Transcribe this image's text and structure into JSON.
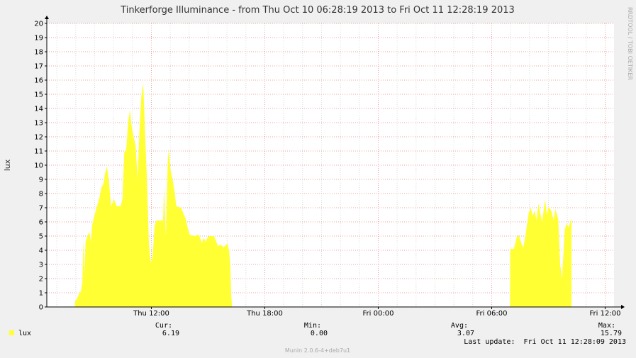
{
  "chart_data": {
    "type": "area",
    "title": "Tinkerforge Illuminance - from Thu Oct 10 06:28:19 2013 to Fri Oct 11 12:28:19 2013",
    "ylabel": "lux",
    "xlabel": "",
    "ylim": [
      0,
      20
    ],
    "yticks": [
      0,
      1,
      2,
      3,
      4,
      5,
      6,
      7,
      8,
      9,
      10,
      11,
      12,
      13,
      14,
      15,
      16,
      17,
      18,
      19,
      20
    ],
    "x_range_hours": [
      6.47,
      36.47
    ],
    "xticks": [
      {
        "hour": 12,
        "label": "Thu 12:00"
      },
      {
        "hour": 18,
        "label": "Thu 18:00"
      },
      {
        "hour": 24,
        "label": "Fri 00:00"
      },
      {
        "hour": 30,
        "label": "Fri 06:00"
      },
      {
        "hour": 36,
        "label": "Fri 12:00"
      }
    ],
    "grid": true,
    "series": [
      {
        "name": "lux",
        "color": "#ffff33",
        "points": [
          [
            7.95,
            0
          ],
          [
            7.97,
            0.4
          ],
          [
            8.07,
            0.6
          ],
          [
            8.17,
            0.9
          ],
          [
            8.27,
            1.1
          ],
          [
            8.35,
            1.7
          ],
          [
            8.4,
            4.6
          ],
          [
            8.47,
            2.4
          ],
          [
            8.52,
            4.6
          ],
          [
            8.62,
            5.0
          ],
          [
            8.72,
            5.3
          ],
          [
            8.8,
            4.6
          ],
          [
            8.87,
            5.8
          ],
          [
            9.02,
            6.6
          ],
          [
            9.17,
            7.3
          ],
          [
            9.27,
            7.8
          ],
          [
            9.35,
            8.4
          ],
          [
            9.47,
            8.7
          ],
          [
            9.55,
            9.4
          ],
          [
            9.65,
            9.9
          ],
          [
            9.75,
            8.9
          ],
          [
            9.87,
            7.1
          ],
          [
            10.02,
            7.6
          ],
          [
            10.17,
            7.1
          ],
          [
            10.37,
            7.1
          ],
          [
            10.47,
            7.6
          ],
          [
            10.57,
            10.9
          ],
          [
            10.67,
            11.1
          ],
          [
            10.77,
            13.0
          ],
          [
            10.87,
            13.9
          ],
          [
            10.95,
            12.8
          ],
          [
            11.07,
            11.9
          ],
          [
            11.17,
            11.4
          ],
          [
            11.27,
            9.0
          ],
          [
            11.37,
            12.4
          ],
          [
            11.47,
            14.8
          ],
          [
            11.57,
            15.8
          ],
          [
            11.67,
            12.1
          ],
          [
            11.77,
            8.9
          ],
          [
            11.87,
            4.5
          ],
          [
            11.97,
            3.1
          ],
          [
            12.07,
            3.6
          ],
          [
            12.17,
            5.7
          ],
          [
            12.27,
            6.1
          ],
          [
            12.47,
            6.1
          ],
          [
            12.62,
            6.1
          ],
          [
            12.67,
            8.4
          ],
          [
            12.77,
            5.0
          ],
          [
            12.87,
            10.4
          ],
          [
            12.92,
            11.1
          ],
          [
            13.02,
            9.6
          ],
          [
            13.12,
            9.0
          ],
          [
            13.22,
            8.2
          ],
          [
            13.32,
            7.1
          ],
          [
            13.57,
            7.0
          ],
          [
            13.82,
            6.2
          ],
          [
            13.92,
            5.6
          ],
          [
            14.02,
            5.1
          ],
          [
            14.27,
            5.0
          ],
          [
            14.52,
            5.1
          ],
          [
            14.67,
            4.5
          ],
          [
            14.77,
            4.9
          ],
          [
            14.87,
            4.6
          ],
          [
            14.97,
            4.9
          ],
          [
            15.07,
            5.0
          ],
          [
            15.32,
            5.0
          ],
          [
            15.52,
            4.3
          ],
          [
            15.67,
            4.4
          ],
          [
            15.82,
            4.2
          ],
          [
            16.02,
            4.5
          ],
          [
            16.12,
            3.9
          ],
          [
            16.17,
            3.0
          ],
          [
            16.22,
            0.9
          ],
          [
            16.27,
            0
          ]
        ]
      },
      {
        "name": "lux",
        "color": "#ffff33",
        "points": [
          [
            30.97,
            0
          ],
          [
            30.98,
            4.1
          ],
          [
            31.17,
            4.1
          ],
          [
            31.32,
            4.9
          ],
          [
            31.42,
            5.1
          ],
          [
            31.57,
            4.5
          ],
          [
            31.67,
            4.2
          ],
          [
            31.77,
            4.9
          ],
          [
            31.87,
            5.8
          ],
          [
            31.97,
            6.7
          ],
          [
            32.07,
            7.0
          ],
          [
            32.17,
            6.4
          ],
          [
            32.27,
            6.8
          ],
          [
            32.37,
            6.1
          ],
          [
            32.47,
            7.3
          ],
          [
            32.57,
            6.6
          ],
          [
            32.67,
            6.0
          ],
          [
            32.82,
            7.6
          ],
          [
            32.92,
            6.5
          ],
          [
            33.02,
            7.1
          ],
          [
            33.17,
            6.7
          ],
          [
            33.27,
            6.1
          ],
          [
            33.37,
            6.9
          ],
          [
            33.52,
            6.2
          ],
          [
            33.62,
            3.0
          ],
          [
            33.72,
            2.0
          ],
          [
            33.87,
            5.5
          ],
          [
            33.97,
            5.9
          ],
          [
            34.07,
            5.6
          ],
          [
            34.17,
            6.1
          ],
          [
            34.22,
            6.19
          ]
        ]
      }
    ],
    "legend": {
      "position": "bottom-left",
      "entries": [
        {
          "name": "lux",
          "color": "#ffff33"
        }
      ]
    },
    "stats": {
      "headers": {
        "cur": "Cur:",
        "min": "Min:",
        "avg": "Avg:",
        "max": "Max:"
      },
      "cur": "6.19",
      "min": "0.00",
      "avg": "3.07",
      "max": "15.79"
    }
  },
  "last_update": "Last update:  Fri Oct 11 12:28:09 2013",
  "side_label": "RRDTOOL / TOBI OETIKER",
  "footer": "Munin 2.0.6-4+deb7u1",
  "colors": {
    "background": "#f0f0f0",
    "plot_background": "#ffffff",
    "grid_major": "#f2a0a0",
    "grid_minor": "#dcdcdc",
    "area": "#ffff33"
  }
}
